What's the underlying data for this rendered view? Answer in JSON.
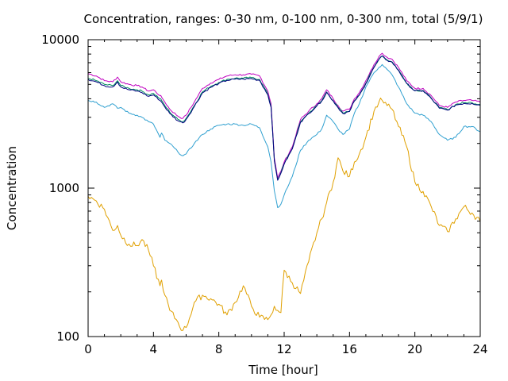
{
  "chart_data": {
    "type": "line",
    "title": "Concentration, ranges: 0-30 nm, 0-100 nm, 0-300 nm, total (5/9/1)",
    "xlabel": "Time [hour]",
    "ylabel": "Concentration",
    "xlim": [
      0,
      24
    ],
    "ylim": [
      100,
      10000
    ],
    "yscale": "log",
    "grid": false,
    "legend": "none",
    "x_ticks": [
      "0",
      "4",
      "8",
      "12",
      "16",
      "20",
      "24"
    ],
    "y_ticks": [
      "100",
      "1000",
      "10000"
    ],
    "x": [
      0,
      0.5,
      1,
      1.5,
      1.8,
      2,
      2.5,
      3,
      3.3,
      3.7,
      4,
      4.4,
      4.5,
      4.7,
      5,
      5.5,
      5.8,
      6,
      6.5,
      7,
      7.5,
      8,
      8.5,
      9,
      9.5,
      10,
      10.5,
      11,
      11.2,
      11.4,
      11.6,
      11.8,
      12,
      12.5,
      13,
      13.5,
      14,
      14.3,
      14.6,
      15,
      15.3,
      15.6,
      16,
      16.3,
      16.6,
      17,
      17.5,
      17.8,
      18,
      18.3,
      18.6,
      19,
      19.5,
      20,
      20.5,
      21,
      21.5,
      22,
      22.5,
      23,
      23.5,
      24
    ],
    "series": [
      {
        "color": "#c000c0",
        "values": [
          5900,
          5700,
          5300,
          5200,
          5600,
          5200,
          5000,
          4900,
          4800,
          4500,
          4600,
          4200,
          4100,
          3800,
          3400,
          3050,
          2950,
          3100,
          3800,
          4700,
          5100,
          5400,
          5700,
          5800,
          5800,
          5850,
          5700,
          4500,
          3700,
          1600,
          1170,
          1300,
          1500,
          1900,
          2900,
          3300,
          3700,
          4000,
          4600,
          4000,
          3600,
          3300,
          3400,
          4000,
          4400,
          5300,
          6800,
          7700,
          8100,
          7600,
          7400,
          6500,
          5300,
          4700,
          4700,
          4200,
          3600,
          3500,
          3800,
          3900,
          3900,
          3800
        ]
      },
      {
        "color": "#008a5e",
        "values": [
          5500,
          5300,
          5000,
          4900,
          5300,
          4900,
          4700,
          4600,
          4500,
          4250,
          4350,
          4000,
          3900,
          3600,
          3250,
          2900,
          2800,
          2950,
          3600,
          4450,
          4850,
          5150,
          5400,
          5500,
          5500,
          5550,
          5400,
          4300,
          3550,
          1550,
          1140,
          1270,
          1460,
          1850,
          2800,
          3200,
          3600,
          3880,
          4450,
          3880,
          3500,
          3200,
          3300,
          3880,
          4250,
          5100,
          6550,
          7400,
          7800,
          7300,
          7100,
          6250,
          5100,
          4550,
          4550,
          4050,
          3480,
          3380,
          3660,
          3760,
          3760,
          3660
        ]
      },
      {
        "color": "#000080",
        "values": [
          5400,
          5200,
          4900,
          4800,
          5200,
          4800,
          4600,
          4500,
          4400,
          4150,
          4250,
          3900,
          3800,
          3520,
          3180,
          2840,
          2750,
          2900,
          3550,
          4380,
          4770,
          5070,
          5320,
          5420,
          5420,
          5470,
          5320,
          4250,
          3500,
          1530,
          1130,
          1260,
          1450,
          1840,
          2780,
          3180,
          3580,
          3860,
          4420,
          3860,
          3480,
          3180,
          3280,
          3860,
          4230,
          5060,
          6500,
          7350,
          7750,
          7250,
          7050,
          6200,
          5060,
          4520,
          4520,
          4020,
          3450,
          3350,
          3630,
          3720,
          3720,
          3620
        ]
      },
      {
        "color": "#30a0d0",
        "values": [
          3900,
          3800,
          3500,
          3700,
          3450,
          3500,
          3200,
          3100,
          3000,
          2800,
          2700,
          2200,
          2350,
          2100,
          2000,
          1750,
          1650,
          1700,
          2000,
          2300,
          2500,
          2650,
          2700,
          2700,
          2650,
          2700,
          2550,
          1900,
          1500,
          960,
          740,
          780,
          900,
          1200,
          1800,
          2100,
          2300,
          2500,
          3100,
          2800,
          2500,
          2300,
          2500,
          3200,
          3700,
          4800,
          6000,
          6500,
          6800,
          6300,
          5800,
          4800,
          3700,
          3200,
          3100,
          2800,
          2300,
          2100,
          2200,
          2600,
          2600,
          2400
        ]
      },
      {
        "color": "#e0a000",
        "values": [
          880,
          820,
          720,
          520,
          560,
          480,
          420,
          410,
          450,
          380,
          300,
          220,
          240,
          190,
          150,
          125,
          110,
          115,
          170,
          190,
          180,
          165,
          140,
          170,
          220,
          160,
          135,
          130,
          140,
          160,
          150,
          145,
          280,
          230,
          195,
          320,
          500,
          620,
          800,
          1100,
          1600,
          1300,
          1200,
          1500,
          1700,
          2200,
          3300,
          3800,
          3900,
          3600,
          3400,
          2600,
          1900,
          1100,
          950,
          750,
          560,
          510,
          620,
          750,
          680,
          600
        ]
      }
    ]
  }
}
